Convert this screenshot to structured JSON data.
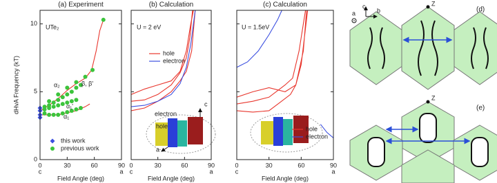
{
  "chart_data": [
    {
      "type": "line",
      "title": "(a) Experiment",
      "xlabel": "Field Angle (deg)",
      "ylabel": "dHvA Frequency (kT)",
      "xlim": [
        0,
        90
      ],
      "ylim": [
        0,
        11
      ],
      "xticks": [
        0,
        30,
        60,
        90
      ],
      "yticks": [
        0,
        5,
        10
      ],
      "show_ytick_labels": true,
      "x_end_labels": [
        "c",
        "a"
      ],
      "legend": "lower left",
      "annotations": [
        "UTe₂",
        "α₂",
        "β, β'",
        "α₁'",
        "α₁"
      ],
      "series": [
        {
          "color": "#e8352c",
          "mode": "lines",
          "x": [
            0,
            10,
            20,
            30,
            40,
            50,
            57,
            62,
            66,
            70,
            null,
            0,
            20,
            40,
            50,
            55
          ],
          "values": [
            3.6,
            4.0,
            4.5,
            5.1,
            5.6,
            6.0,
            6.6,
            8.0,
            9.5,
            10.3,
            null,
            3.3,
            3.3,
            3.6,
            3.9,
            4.1
          ]
        },
        {
          "name": "this work",
          "color": "#3b4fe0",
          "mode": "diamonds",
          "x": [
            0,
            0,
            0,
            0
          ],
          "values": [
            3.8,
            3.6,
            3.3,
            3.1
          ]
        },
        {
          "name": "previous work",
          "color": "#3cc43c",
          "mode": "circles",
          "x": [
            10,
            20,
            30,
            40,
            50,
            58,
            70,
            5,
            10,
            15,
            20,
            25,
            30,
            35,
            40,
            45,
            5,
            10,
            15,
            20,
            25,
            30,
            35,
            40,
            5,
            10,
            15,
            20,
            25,
            30,
            35,
            40,
            45
          ],
          "values": [
            4.3,
            4.8,
            5.3,
            5.7,
            6.1,
            6.6,
            10.3,
            3.9,
            4.0,
            4.2,
            4.4,
            4.6,
            4.8,
            5.0,
            5.3,
            5.5,
            3.7,
            3.8,
            3.9,
            4.0,
            4.1,
            4.2,
            4.3,
            4.4,
            3.4,
            3.3,
            3.3,
            3.3,
            3.4,
            3.5,
            3.6,
            3.7,
            3.8
          ]
        }
      ]
    },
    {
      "type": "line",
      "title": "(b) Calculation",
      "xlabel": "Field Angle (deg)",
      "xlim": [
        0,
        90
      ],
      "ylim": [
        0,
        11
      ],
      "xticks": [
        0,
        30,
        60,
        90
      ],
      "yticks": [
        0,
        5,
        10
      ],
      "show_ytick_labels": false,
      "x_end_labels": [
        "c",
        "a"
      ],
      "legend": "center left",
      "annotations": [
        "U = 2 eV",
        "electron",
        "hole",
        "c",
        "a"
      ],
      "series": [
        {
          "name": "hole",
          "color": "#e8352c",
          "mode": "lines",
          "x": [
            0,
            15,
            30,
            45,
            55,
            62,
            67,
            70,
            null,
            0,
            15,
            30,
            45,
            55,
            62,
            66,
            69,
            null,
            0,
            15,
            30,
            45,
            55,
            62,
            68,
            72
          ],
          "values": [
            4.8,
            5.2,
            5.5,
            5.8,
            6.5,
            8.0,
            10.0,
            11.0,
            null,
            4.3,
            4.4,
            4.8,
            5.5,
            6.4,
            7.5,
            9.0,
            11.0,
            null,
            3.6,
            3.8,
            4.3,
            5.0,
            5.8,
            6.5,
            8.0,
            11.0
          ]
        },
        {
          "name": "electron",
          "color": "#3b4fe0",
          "mode": "lines",
          "x": [
            0,
            15,
            30,
            45,
            55,
            62,
            67,
            72
          ],
          "values": [
            3.9,
            4.0,
            4.3,
            4.8,
            5.6,
            6.8,
            8.5,
            11.0
          ]
        }
      ]
    },
    {
      "type": "line",
      "title": "(c) Calculation",
      "xlabel": "Field Angle (deg)",
      "xlim": [
        0,
        90
      ],
      "ylim": [
        0,
        11
      ],
      "xticks": [
        0,
        30,
        60,
        90
      ],
      "yticks": [
        0,
        5,
        10
      ],
      "show_ytick_labels": false,
      "x_end_labels": [
        "c",
        "a"
      ],
      "legend": "lower right",
      "annotations": [
        "U = 1.5eV"
      ],
      "series": [
        {
          "name": "hole",
          "color": "#e8352c",
          "mode": "lines",
          "x": [
            0,
            15,
            30,
            45,
            55,
            60,
            63,
            66,
            null,
            0,
            15,
            30,
            45,
            52,
            58,
            62,
            64,
            null,
            0,
            15,
            30,
            40,
            50,
            55,
            62,
            65
          ],
          "values": [
            4.6,
            5.0,
            5.3,
            5.0,
            5.5,
            7.0,
            9.0,
            11.0,
            null,
            4.1,
            4.3,
            4.6,
            5.5,
            6.0,
            8.0,
            10.0,
            11.0,
            null,
            3.6,
            3.5,
            3.6,
            4.2,
            4.8,
            5.5,
            8.0,
            11.0
          ]
        },
        {
          "name": "electron",
          "color": "#3b4fe0",
          "mode": "lines",
          "x": [
            0,
            10,
            20,
            30,
            38,
            42,
            null,
            78,
            84,
            90
          ],
          "values": [
            6.8,
            7.2,
            8.0,
            9.2,
            10.3,
            11.0,
            null,
            2.6,
            2.0,
            1.6
          ]
        }
      ]
    }
  ],
  "diagrams": [
    {
      "label": "(d)",
      "point": "Z",
      "axes": [
        "c",
        "b",
        "a"
      ]
    },
    {
      "label": "(e)",
      "point": "Z"
    }
  ]
}
